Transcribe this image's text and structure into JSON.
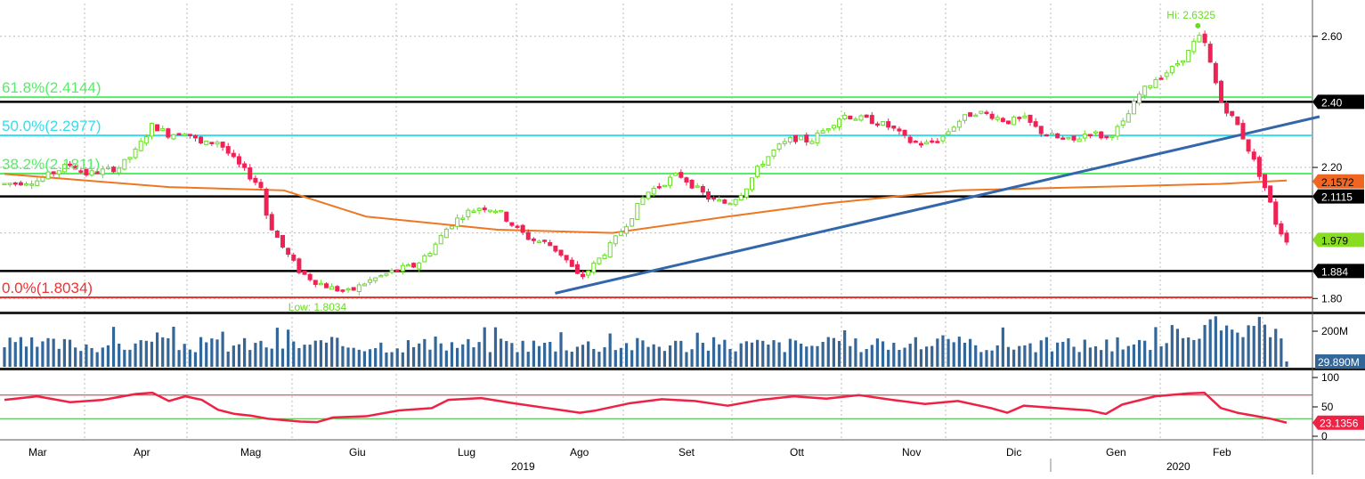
{
  "chart_data": {
    "type": "candlestick",
    "x_months": [
      "Mar",
      "Apr",
      "Mag",
      "Giu",
      "Lug",
      "Ago",
      "Set",
      "Ott",
      "Nov",
      "Dic",
      "Gen",
      "Feb"
    ],
    "x_years": [
      "2019",
      "2020"
    ],
    "price_panel": {
      "ylim": [
        1.76,
        2.7
      ],
      "y_ticks": [
        "1.80",
        "2.20",
        "2.60"
      ],
      "y_tick_values": [
        1.8,
        2.2,
        2.6
      ],
      "grid": true,
      "candles_close_path": [
        [
          0,
          2.15
        ],
        [
          2,
          2.16
        ],
        [
          4,
          2.21
        ],
        [
          5,
          2.18
        ],
        [
          7,
          2.2
        ],
        [
          8,
          2.25
        ],
        [
          9,
          2.33
        ],
        [
          10,
          2.3
        ],
        [
          11,
          2.31
        ],
        [
          12,
          2.27
        ],
        [
          13,
          2.28
        ],
        [
          14,
          2.22
        ],
        [
          15,
          2.17
        ],
        [
          15.6,
          2.14
        ],
        [
          16,
          2.04
        ],
        [
          17,
          1.95
        ],
        [
          18,
          1.88
        ],
        [
          19,
          1.85
        ],
        [
          20,
          1.83
        ],
        [
          21,
          1.82
        ],
        [
          22,
          1.85
        ],
        [
          23,
          1.87
        ],
        [
          24,
          1.89
        ],
        [
          25,
          1.9
        ],
        [
          26,
          1.95
        ],
        [
          27,
          2.02
        ],
        [
          28,
          2.06
        ],
        [
          29,
          2.08
        ],
        [
          30,
          2.07
        ],
        [
          31,
          2.02
        ],
        [
          32,
          1.98
        ],
        [
          33,
          1.97
        ],
        [
          34,
          1.93
        ],
        [
          35,
          1.86
        ],
        [
          36,
          1.91
        ],
        [
          37,
          1.97
        ],
        [
          38,
          2.04
        ],
        [
          39,
          2.12
        ],
        [
          40,
          2.15
        ],
        [
          41,
          2.18
        ],
        [
          42,
          2.14
        ],
        [
          43,
          2.1
        ],
        [
          44,
          2.09
        ],
        [
          45,
          2.13
        ],
        [
          46,
          2.21
        ],
        [
          47,
          2.26
        ],
        [
          48,
          2.29
        ],
        [
          49,
          2.28
        ],
        [
          50,
          2.32
        ],
        [
          51,
          2.36
        ],
        [
          52,
          2.35
        ],
        [
          53,
          2.34
        ],
        [
          54,
          2.32
        ],
        [
          55,
          2.28
        ],
        [
          56,
          2.27
        ],
        [
          57,
          2.29
        ],
        [
          58,
          2.34
        ],
        [
          59,
          2.37
        ],
        [
          60,
          2.36
        ],
        [
          61,
          2.34
        ],
        [
          62,
          2.35
        ],
        [
          63,
          2.31
        ],
        [
          64,
          2.29
        ],
        [
          65,
          2.28
        ],
        [
          66,
          2.31
        ],
        [
          67,
          2.29
        ],
        [
          68,
          2.33
        ],
        [
          69,
          2.42
        ],
        [
          70,
          2.47
        ],
        [
          71,
          2.5
        ],
        [
          72,
          2.55
        ],
        [
          72.6,
          2.6
        ],
        [
          73,
          2.58
        ],
        [
          74,
          2.4
        ],
        [
          75,
          2.33
        ],
        [
          76,
          2.22
        ],
        [
          76.6,
          2.15
        ],
        [
          77,
          2.09
        ],
        [
          77.4,
          2.02
        ],
        [
          78,
          1.98
        ]
      ],
      "candle_domain": [
        0,
        78
      ],
      "moving_average": [
        [
          0,
          2.18
        ],
        [
          10,
          2.14
        ],
        [
          17,
          2.13
        ],
        [
          22,
          2.05
        ],
        [
          30,
          2.01
        ],
        [
          37,
          2.0
        ],
        [
          44,
          2.05
        ],
        [
          50,
          2.09
        ],
        [
          58,
          2.13
        ],
        [
          66,
          2.14
        ],
        [
          74,
          2.15
        ],
        [
          78,
          2.16
        ]
      ],
      "trendline": {
        "from": [
          33.5,
          1.816
        ],
        "to": [
          80,
          2.355
        ]
      },
      "horizontal_levels": [
        {
          "value": 2.4144,
          "label": "61.8%(2.4144)",
          "color": "#55ee66"
        },
        {
          "value": 2.2977,
          "label": "50.0%(2.2977)",
          "color": "#33ddee"
        },
        {
          "value": 2.1811,
          "label": "38.2%(2.1811)",
          "color": "#55ee66"
        },
        {
          "value": 1.8034,
          "label": "0.0%(1.8034)",
          "color": "#ee3333"
        },
        {
          "value": 2.4,
          "label": "",
          "color": "#000000"
        },
        {
          "value": 2.1115,
          "label": "",
          "color": "#000000"
        },
        {
          "value": 1.884,
          "label": "",
          "color": "#000000"
        }
      ],
      "annotations": [
        {
          "text": "Hi: 2.6325",
          "x": 72.6,
          "y": 2.6325
        },
        {
          "text": "Low: 1.8034",
          "x": 19,
          "y": 1.8034
        }
      ],
      "right_tags": [
        {
          "text": "2.40",
          "value": 2.4,
          "bg": "#000000",
          "fg": "#ffffff"
        },
        {
          "text": "2.1572",
          "value": 2.1572,
          "bg": "#ee6622",
          "fg": "#000000"
        },
        {
          "text": "2.1115",
          "value": 2.1115,
          "bg": "#000000",
          "fg": "#ffffff"
        },
        {
          "text": "1.979",
          "value": 1.979,
          "bg": "#88dd22",
          "fg": "#000000"
        },
        {
          "text": "1.884",
          "value": 1.884,
          "bg": "#000000",
          "fg": "#ffffff"
        }
      ]
    },
    "volume_panel": {
      "y_ticks": [
        "200M"
      ],
      "y_tick_values": [
        200
      ],
      "last_label": "29.890M",
      "units": "M"
    },
    "rsi_panel": {
      "ylim": [
        0,
        100
      ],
      "y_ticks": [
        "100",
        "50",
        "0"
      ],
      "y_tick_values": [
        100,
        50,
        0
      ],
      "levels": [
        70,
        30
      ],
      "last_label": "23.1356",
      "values": [
        [
          0,
          62
        ],
        [
          2,
          68
        ],
        [
          4,
          58
        ],
        [
          6,
          62
        ],
        [
          8,
          72
        ],
        [
          9,
          74
        ],
        [
          10,
          60
        ],
        [
          11,
          68
        ],
        [
          12,
          62
        ],
        [
          13,
          45
        ],
        [
          14,
          38
        ],
        [
          15,
          35
        ],
        [
          16,
          30
        ],
        [
          18,
          25
        ],
        [
          19,
          24
        ],
        [
          20,
          32
        ],
        [
          22,
          34
        ],
        [
          24,
          44
        ],
        [
          26,
          48
        ],
        [
          27,
          62
        ],
        [
          29,
          65
        ],
        [
          31,
          56
        ],
        [
          33,
          48
        ],
        [
          35,
          40
        ],
        [
          36,
          44
        ],
        [
          38,
          56
        ],
        [
          40,
          63
        ],
        [
          42,
          60
        ],
        [
          44,
          52
        ],
        [
          46,
          62
        ],
        [
          48,
          68
        ],
        [
          50,
          64
        ],
        [
          52,
          70
        ],
        [
          54,
          62
        ],
        [
          56,
          55
        ],
        [
          58,
          60
        ],
        [
          60,
          48
        ],
        [
          61,
          40
        ],
        [
          62,
          52
        ],
        [
          64,
          48
        ],
        [
          66,
          44
        ],
        [
          67,
          38
        ],
        [
          68,
          54
        ],
        [
          70,
          68
        ],
        [
          72,
          73
        ],
        [
          73,
          74
        ],
        [
          74,
          48
        ],
        [
          75,
          40
        ],
        [
          76,
          35
        ],
        [
          77,
          30
        ],
        [
          78,
          23.1
        ]
      ]
    },
    "colors": {
      "up": "#66dd22",
      "down": "#ee2255",
      "ma": "#ee7722",
      "trend": "#3366aa",
      "volume": "#336699",
      "rsi": "#ee2244",
      "grid": "#bbbbbb"
    }
  }
}
